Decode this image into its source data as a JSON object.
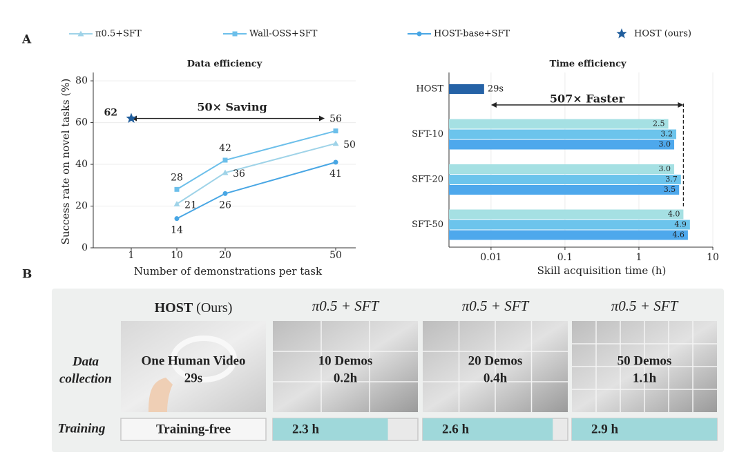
{
  "panel_labels": [
    "A",
    "B"
  ],
  "chart_data": [
    {
      "type": "line",
      "title": "Data efficiency",
      "categories": [
        "1",
        "10",
        "20",
        "50"
      ],
      "series": [
        {
          "name": "π0.5+SFT",
          "color": "#9fd3e8",
          "values": [
            null,
            21,
            36,
            50
          ]
        },
        {
          "name": "Wall-OSS+SFT",
          "color": "#6cbfea",
          "values": [
            null,
            28,
            42,
            56
          ]
        },
        {
          "name": "HOST-base+SFT",
          "color": "#48a6e4",
          "values": [
            null,
            14,
            26,
            41
          ]
        },
        {
          "name": "HOST (ours)",
          "color": "#1f5d9c",
          "values": [
            62,
            null,
            null,
            null
          ]
        }
      ],
      "ylim": [
        0,
        84
      ],
      "yticks": [
        0,
        20,
        40,
        60,
        80
      ],
      "ylabel": "Success rate on novel tasks (%)",
      "xlabel": "Number of demonstrations per task",
      "annotation": "50× Saving",
      "grid": true,
      "legend": "top"
    },
    {
      "type": "barh",
      "title": "Time efficiency",
      "categories": [
        "HOST",
        "SFT-10",
        "SFT-20",
        "SFT-50"
      ],
      "series": [
        {
          "color": "#2562a6",
          "values": [
            0.00806,
            null,
            null,
            null
          ],
          "value_labels": [
            "29s",
            null,
            null,
            null
          ]
        },
        {
          "color": "#a5e0e3",
          "values": [
            null,
            2.5,
            3.0,
            4.0
          ],
          "value_labels": [
            null,
            "2.5",
            "3.0",
            "4.0"
          ]
        },
        {
          "color": "#6cc4ec",
          "values": [
            null,
            3.2,
            3.7,
            4.9
          ],
          "value_labels": [
            null,
            "3.2",
            "3.7",
            "4.9"
          ]
        },
        {
          "color": "#4ea8ec",
          "values": [
            null,
            3.0,
            3.5,
            4.6
          ],
          "value_labels": [
            null,
            "3.0",
            "3.5",
            "4.6"
          ]
        }
      ],
      "xscale": "log",
      "xlim": [
        0.0027,
        10
      ],
      "xticks": [
        0.01,
        0.1,
        1,
        10
      ],
      "xlabel": "Skill acquisition time (h)",
      "annotation": "507× Faster",
      "grid": true
    }
  ],
  "panel_b": {
    "row_labels": [
      [
        "Data",
        "collection"
      ],
      [
        "Training"
      ]
    ],
    "columns": [
      {
        "header": [
          "HOST",
          " (Ours)"
        ],
        "image_text": [
          "One Human Video",
          "29s"
        ],
        "training": {
          "label": "Training-free"
        }
      },
      {
        "header": [
          "π0.5 + SFT"
        ],
        "image_text": [
          "10 Demos",
          "0.2h"
        ],
        "training": {
          "value": 2.3,
          "label": "2.3 h"
        }
      },
      {
        "header": [
          "π0.5 + SFT"
        ],
        "image_text": [
          "20 Demos",
          "0.4h"
        ],
        "training": {
          "value": 2.6,
          "label": "2.6 h"
        }
      },
      {
        "header": [
          "π0.5 + SFT"
        ],
        "image_text": [
          "50 Demos",
          "1.1h"
        ],
        "training": {
          "value": 2.9,
          "label": "2.9 h"
        }
      }
    ]
  }
}
